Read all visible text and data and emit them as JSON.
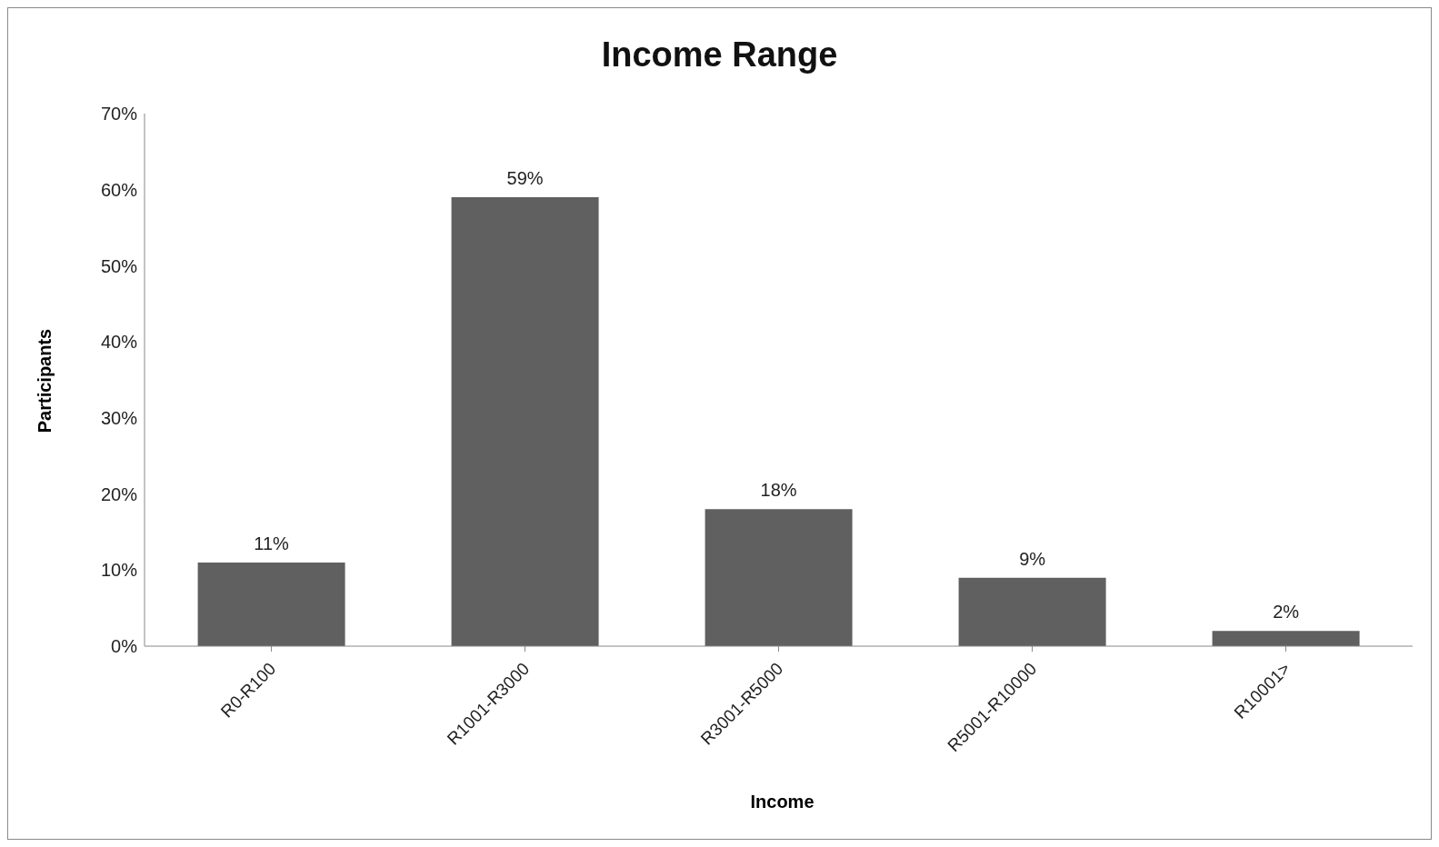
{
  "chart_data": {
    "type": "bar",
    "title": "Income Range",
    "xlabel": "Income",
    "ylabel": "Participants",
    "categories": [
      "R0-R100",
      "R1001-R3000",
      "R3001-R5000",
      "R5001-R10000",
      "R10001>"
    ],
    "values": [
      11,
      59,
      18,
      9,
      2
    ],
    "value_labels": [
      "11%",
      "59%",
      "18%",
      "9%",
      "2%"
    ],
    "color": "#606060",
    "ylim": [
      0,
      70
    ],
    "yticks": [
      {
        "value": 0,
        "label": "0%"
      },
      {
        "value": 10,
        "label": "10%"
      },
      {
        "value": 20,
        "label": "20%"
      },
      {
        "value": 30,
        "label": "30%"
      },
      {
        "value": 40,
        "label": "40%"
      },
      {
        "value": 50,
        "label": "50%"
      },
      {
        "value": 60,
        "label": "60%"
      },
      {
        "value": 70,
        "label": "70%"
      }
    ],
    "grid": false,
    "legend": false
  }
}
